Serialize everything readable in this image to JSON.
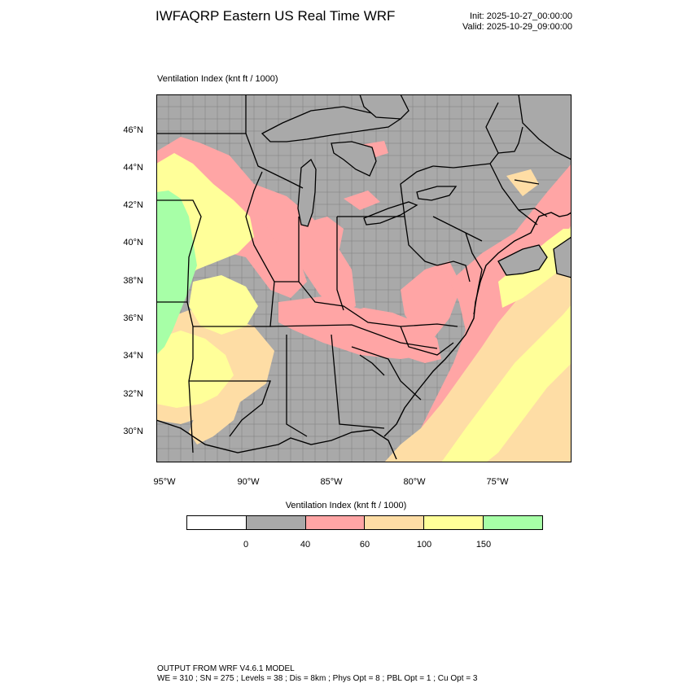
{
  "header": {
    "title": "IWFAQRP Eastern US Real Time WRF",
    "init": "Init: 2025-10-27_00:00:00",
    "valid": "Valid: 2025-10-29_09:00:00"
  },
  "field": {
    "label": "Ventilation Index   (knt ft / 1000)"
  },
  "map": {
    "lat_labels": [
      "46°N",
      "44°N",
      "42°N",
      "40°N",
      "38°N",
      "36°N",
      "34°N",
      "32°N",
      "30°N"
    ],
    "lon_labels": [
      "95°W",
      "90°W",
      "85°W",
      "80°W",
      "75°W"
    ],
    "lat_range": [
      28.4,
      47.9
    ],
    "lon_range": [
      -95.5,
      -70.4
    ],
    "colors": {
      "lt40": "#a9a9a9",
      "40to60": "#ffa5a5",
      "60to100": "#fedda5",
      "100to150": "#ffff99",
      "gt150": "#a7ffa7",
      "boundary": "#000000"
    }
  },
  "colorbar": {
    "title": "Ventilation Index  (knt ft / 1000)",
    "colors": [
      "#ffffff",
      "#a9a9a9",
      "#ffa5a5",
      "#fedda5",
      "#ffff99",
      "#a7ffa7"
    ],
    "tick_labels": [
      "0",
      "40",
      "60",
      "100",
      "150"
    ]
  },
  "footer": {
    "line1": "OUTPUT FROM WRF V4.6.1 MODEL",
    "line2": "WE = 310 ; SN = 275 ; Levels = 38 ; Dis = 8km ; Phys Opt = 8 ; PBL Opt = 1 ; Cu Opt = 3"
  }
}
